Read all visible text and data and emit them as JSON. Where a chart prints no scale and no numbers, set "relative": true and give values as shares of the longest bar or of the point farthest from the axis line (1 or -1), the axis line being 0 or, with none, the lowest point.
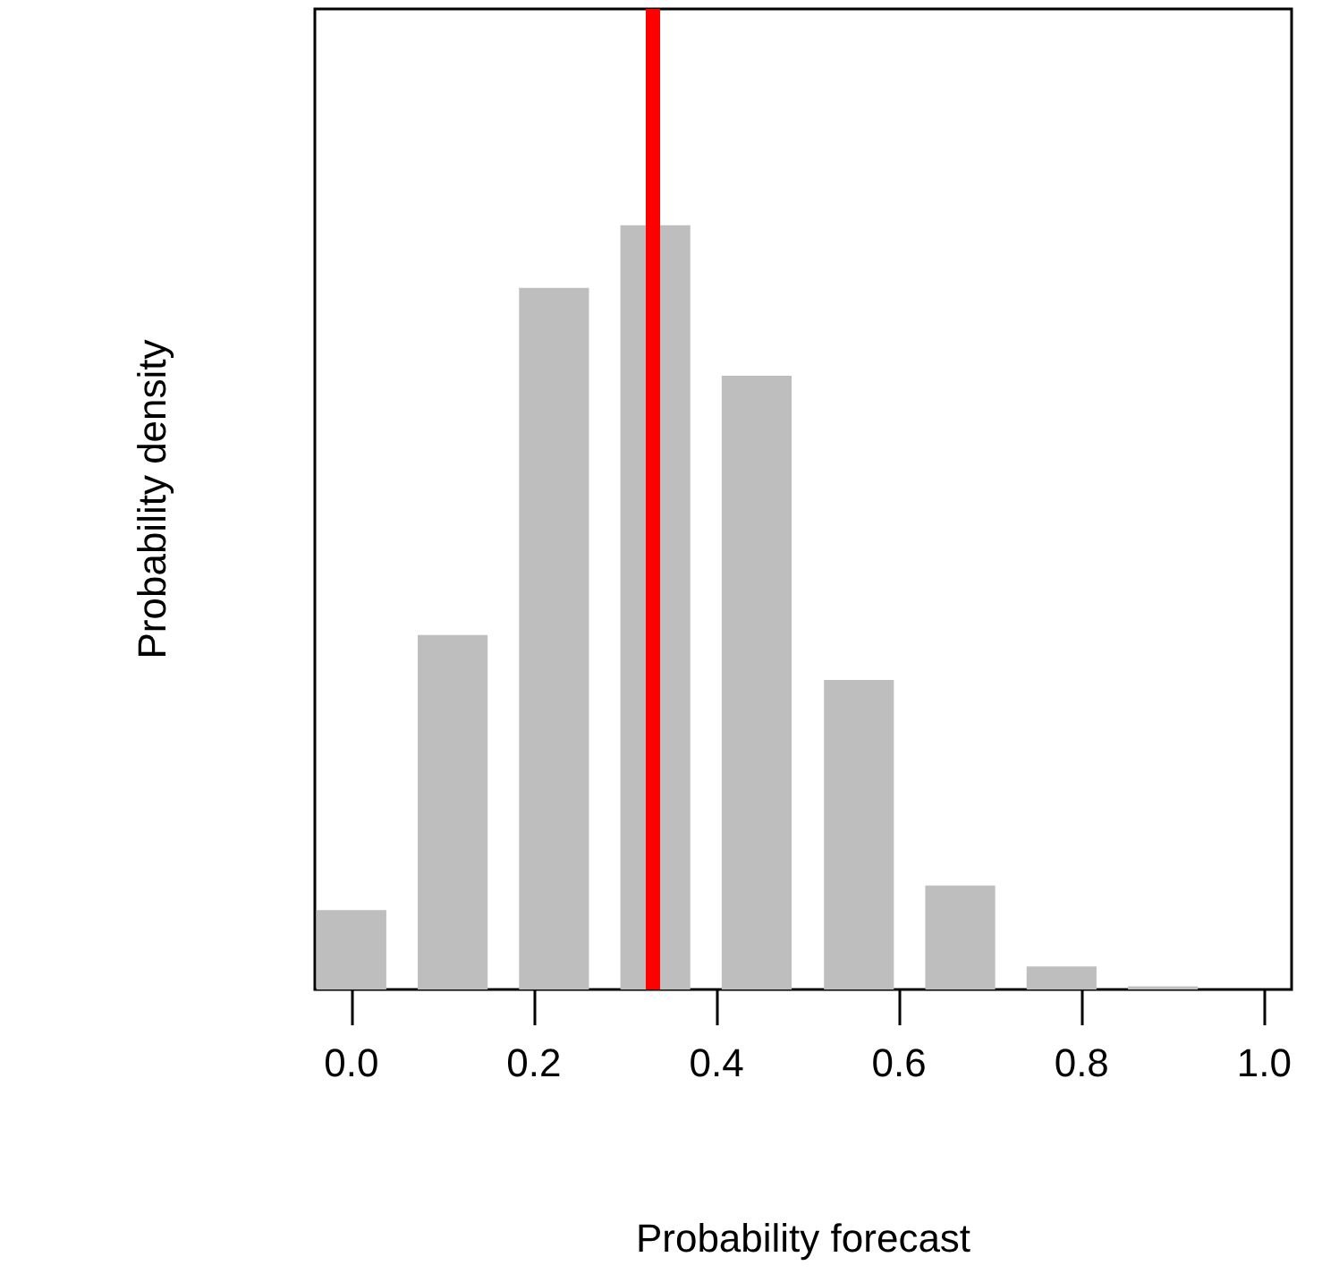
{
  "chart_data": {
    "type": "bar",
    "relative": true,
    "xlabel": "Probability forecast",
    "ylabel": "Probability density",
    "x": [
      0,
      0.111,
      0.222,
      0.333,
      0.444,
      0.556,
      0.667,
      0.778,
      0.889
    ],
    "values": [
      0.104,
      0.464,
      0.918,
      1,
      0.803,
      0.405,
      0.136,
      0.03,
      0.004
    ],
    "color": "#bebebe",
    "xlim": [
      -0.04,
      1.03
    ],
    "xticks": [
      {
        "value": 0,
        "label": "0.0"
      },
      {
        "value": 0.2,
        "label": "0.2"
      },
      {
        "value": 0.4,
        "label": "0.4"
      },
      {
        "value": 0.6,
        "label": "0.6"
      },
      {
        "value": 0.8,
        "label": "0.8"
      },
      {
        "value": 1,
        "label": "1.0"
      }
    ],
    "ref_lines": [
      {
        "axis": "x",
        "value": 0.333,
        "label": null,
        "color": "#ff0000"
      }
    ],
    "grid": false
  }
}
